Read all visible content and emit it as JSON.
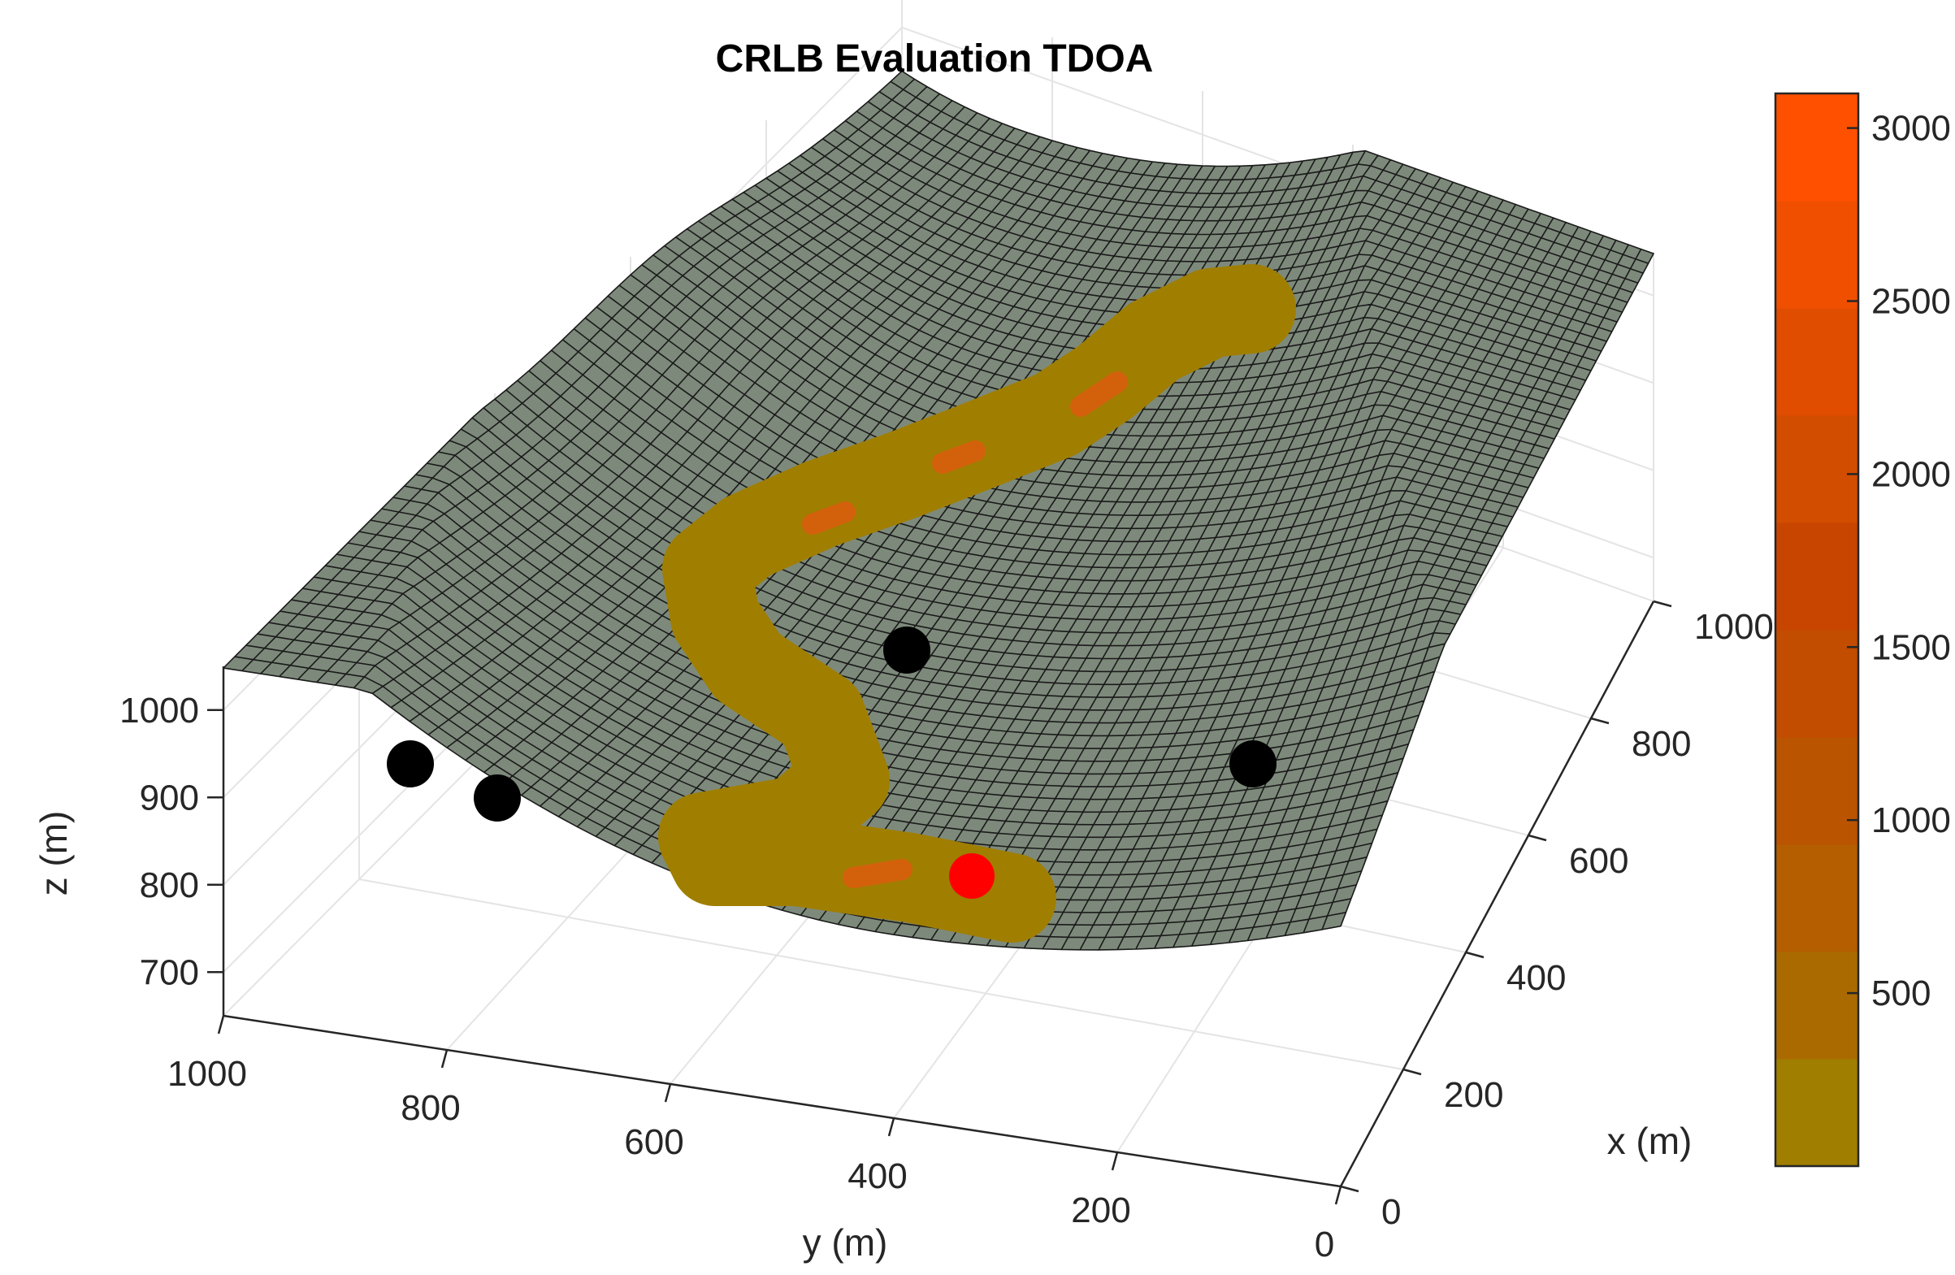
{
  "chart_data": {
    "type": "surface3d",
    "title": "CRLB Evaluation TDOA",
    "xlabel": "x (m)",
    "ylabel": "y (m)",
    "zlabel": "z (m)",
    "xlim": [
      0,
      1000
    ],
    "ylim": [
      0,
      1000
    ],
    "zlim": [
      650,
      1050
    ],
    "x_ticks": [
      0,
      200,
      400,
      600,
      800,
      1000
    ],
    "y_ticks": [
      0,
      200,
      400,
      600,
      800,
      1000
    ],
    "z_ticks": [
      700,
      800,
      900,
      1000
    ],
    "x_tick_labels": [
      "0",
      "200",
      "400",
      "600",
      "800",
      "1000"
    ],
    "y_tick_labels": [
      "0",
      "200",
      "400",
      "600",
      "800",
      "1000"
    ],
    "z_tick_labels": [
      "700",
      "800",
      "900",
      "1000"
    ],
    "grid": true,
    "terrain": {
      "description": "Valley terrain surface with V-shaped channel",
      "color": "#7d8a7b",
      "edge_color": "#1a1a1a",
      "grid_lines": 60
    },
    "receivers": [
      {
        "name": "receiver-1",
        "x": 30,
        "y": 820,
        "z": 915,
        "color": "#000000"
      },
      {
        "name": "receiver-2",
        "x": 50,
        "y": 760,
        "z": 890,
        "color": "#000000"
      },
      {
        "name": "receiver-3",
        "x": 620,
        "y": 520,
        "z": 905,
        "color": "#000000"
      },
      {
        "name": "receiver-4",
        "x": 420,
        "y": 150,
        "z": 900,
        "color": "#000000"
      }
    ],
    "target": {
      "name": "target",
      "x": 90,
      "y": 480,
      "z": 790,
      "color": "#ff0000"
    },
    "colorbar": {
      "ticks": [
        500,
        1000,
        1500,
        2000,
        2500,
        3000
      ],
      "tick_labels": [
        "500",
        "1000",
        "1500",
        "2000",
        "2500",
        "3000"
      ],
      "range": [
        0,
        3100
      ],
      "colors": [
        "#a07e00",
        "#aa6a00",
        "#b45e00",
        "#bb5400",
        "#c24c00",
        "#c84500",
        "#d24d00",
        "#e04c00",
        "#f04f00",
        "#ff5000"
      ]
    },
    "crlb_band": {
      "description": "CRLB error band along path (values mostly < 500, peaks near 2000-3000)",
      "base_color": "#a07e00",
      "hot_color": "#e05a10"
    }
  }
}
